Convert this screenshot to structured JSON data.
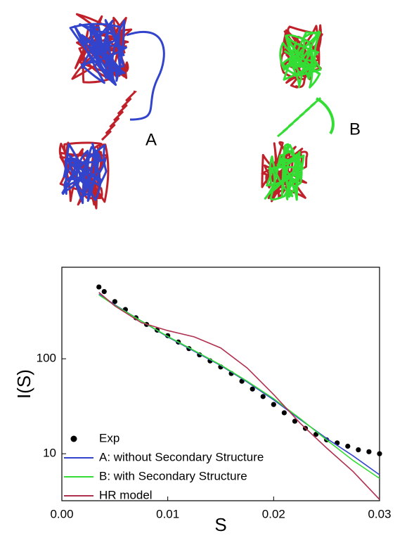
{
  "figure": {
    "panel_labels": [
      "A",
      "B"
    ]
  },
  "chart_data": {
    "type": "line",
    "xlabel": "S",
    "ylabel": "I(S)",
    "xlim": [
      0,
      0.03
    ],
    "ylim": [
      3.2,
      920
    ],
    "log_y": true,
    "xticks": [
      {
        "value": 0,
        "label": "0.00"
      },
      0.01,
      0.02,
      0.03
    ],
    "yticks": [
      10,
      100
    ],
    "legend": "lower left",
    "series": [
      {
        "name": "Exp",
        "color": "#000000",
        "marker": "dot",
        "x": [
          0.0035,
          0.004,
          0.005,
          0.006,
          0.007,
          0.008,
          0.009,
          0.01,
          0.011,
          0.012,
          0.013,
          0.014,
          0.015,
          0.016,
          0.017,
          0.018,
          0.019,
          0.02,
          0.021,
          0.022,
          0.023,
          0.024,
          0.025,
          0.026,
          0.027,
          0.028,
          0.029,
          0.03
        ],
        "values": [
          570,
          510,
          400,
          330,
          270,
          230,
          200,
          175,
          150,
          128,
          110,
          95,
          82,
          70,
          58,
          48,
          40,
          33,
          27,
          22,
          18.5,
          16,
          14,
          13,
          12,
          11,
          10.5,
          10
        ]
      },
      {
        "name": "A: without Secondary Structure",
        "color": "#3344cc",
        "x": [
          0.0035,
          0.005,
          0.0075,
          0.01,
          0.0125,
          0.015,
          0.0175,
          0.02,
          0.0225,
          0.025,
          0.0275,
          0.03
        ],
        "values": [
          480,
          370,
          250,
          170,
          120,
          85,
          57,
          37,
          23,
          14.5,
          9.5,
          6
        ]
      },
      {
        "name": "B: with Secondary Structure",
        "color": "#33dd33",
        "x": [
          0.0035,
          0.005,
          0.0075,
          0.01,
          0.0125,
          0.015,
          0.0175,
          0.02,
          0.0225,
          0.025,
          0.0275,
          0.03
        ],
        "values": [
          470,
          365,
          250,
          172,
          122,
          86,
          58,
          38,
          23.5,
          14,
          8.5,
          5.5
        ]
      },
      {
        "name": "HR model",
        "color": "#b03050",
        "x": [
          0.0035,
          0.005,
          0.0075,
          0.01,
          0.0125,
          0.015,
          0.0175,
          0.02,
          0.0225,
          0.025,
          0.0275,
          0.03
        ],
        "values": [
          500,
          360,
          240,
          198,
          170,
          130,
          80,
          42,
          21,
          11.5,
          6.5,
          3.3
        ]
      }
    ]
  }
}
